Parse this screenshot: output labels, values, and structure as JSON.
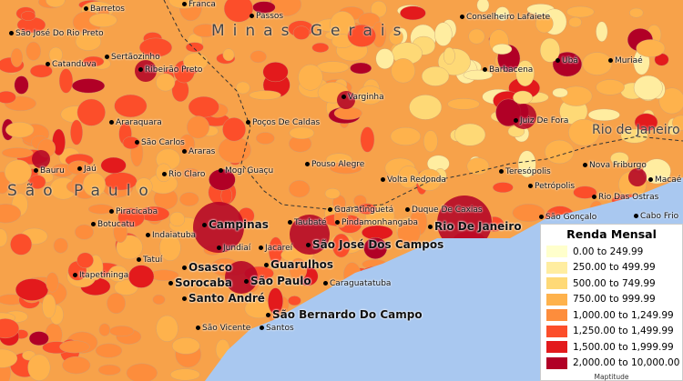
{
  "regions": [
    "Minas Gerais",
    "São Paulo",
    "Rio de Janeiro"
  ],
  "cities": [
    {
      "name": "Barretos",
      "big": false
    },
    {
      "name": "Franca",
      "big": false
    },
    {
      "name": "Passos",
      "big": false
    },
    {
      "name": "Conselheiro Lafaiete",
      "big": false
    },
    {
      "name": "São José Do Rio Preto",
      "big": false
    },
    {
      "name": "Sertãozinho",
      "big": false
    },
    {
      "name": "Catanduva",
      "big": false
    },
    {
      "name": "Ribeirão Preto",
      "big": false
    },
    {
      "name": "Barbacena",
      "big": false
    },
    {
      "name": "Ubá",
      "big": false
    },
    {
      "name": "Muriaé",
      "big": false
    },
    {
      "name": "Varginha",
      "big": false
    },
    {
      "name": "Araraquara",
      "big": false
    },
    {
      "name": "Juiz De Fora",
      "big": false
    },
    {
      "name": "Poços De Caldas",
      "big": false
    },
    {
      "name": "São Carlos",
      "big": false
    },
    {
      "name": "Bauru",
      "big": false
    },
    {
      "name": "Jaú",
      "big": false
    },
    {
      "name": "Araras",
      "big": false
    },
    {
      "name": "Rio Claro",
      "big": false
    },
    {
      "name": "Mogi Guaçu",
      "big": false
    },
    {
      "name": "Pouso Alegre",
      "big": false
    },
    {
      "name": "Teresópolis",
      "big": false
    },
    {
      "name": "Nova Friburgo",
      "big": false
    },
    {
      "name": "Macaé",
      "big": false
    },
    {
      "name": "Volta Redonda",
      "big": false
    },
    {
      "name": "Petrópolis",
      "big": false
    },
    {
      "name": "Rio Das Ostras",
      "big": false
    },
    {
      "name": "Piracicaba",
      "big": false
    },
    {
      "name": "Botucatu",
      "big": false
    },
    {
      "name": "Campinas",
      "big": true
    },
    {
      "name": "Indaiatuba",
      "big": false
    },
    {
      "name": "Guaratinguetá",
      "big": false
    },
    {
      "name": "Duque De Caxias",
      "big": false
    },
    {
      "name": "São Gonçalo",
      "big": false
    },
    {
      "name": "Cabo Frio",
      "big": false
    },
    {
      "name": "Taubaté",
      "big": false
    },
    {
      "name": "Pindamonhangaba",
      "big": false
    },
    {
      "name": "Rio De Janeiro",
      "big": true
    },
    {
      "name": "Jundiaí",
      "big": false
    },
    {
      "name": "Jacareí",
      "big": false
    },
    {
      "name": "São José Dos Campos",
      "big": true
    },
    {
      "name": "Tatuí",
      "big": false
    },
    {
      "name": "Guarulhos",
      "big": true
    },
    {
      "name": "Itapetininga",
      "big": false
    },
    {
      "name": "Osasco",
      "big": true
    },
    {
      "name": "Sorocaba",
      "big": true
    },
    {
      "name": "São Paulo",
      "big": true
    },
    {
      "name": "Caraguatatuba",
      "big": false
    },
    {
      "name": "Santo André",
      "big": true
    },
    {
      "name": "São Bernardo Do Campo",
      "big": true
    },
    {
      "name": "São Vicente",
      "big": false
    },
    {
      "name": "Santos",
      "big": false
    }
  ],
  "legend": {
    "title": "Renda Mensal",
    "credit": "Maptitude",
    "items": [
      {
        "label": "0.00 to 249.99",
        "color": "#ffffcc"
      },
      {
        "label": "250.00 to 499.99",
        "color": "#ffeda0"
      },
      {
        "label": "500.00 to 749.99",
        "color": "#fed976"
      },
      {
        "label": "750.00 to 999.99",
        "color": "#feb24c"
      },
      {
        "label": "1,000.00 to 1,249.99",
        "color": "#fd8d3c"
      },
      {
        "label": "1,250.00 to 1,499.99",
        "color": "#fc4e2a"
      },
      {
        "label": "1,500.00 to 1,999.99",
        "color": "#e31a1c"
      },
      {
        "label": "2,000.00 to 10,000.00",
        "color": "#b10026"
      }
    ]
  },
  "colors": {
    "ocean": "#a9c8f0"
  }
}
